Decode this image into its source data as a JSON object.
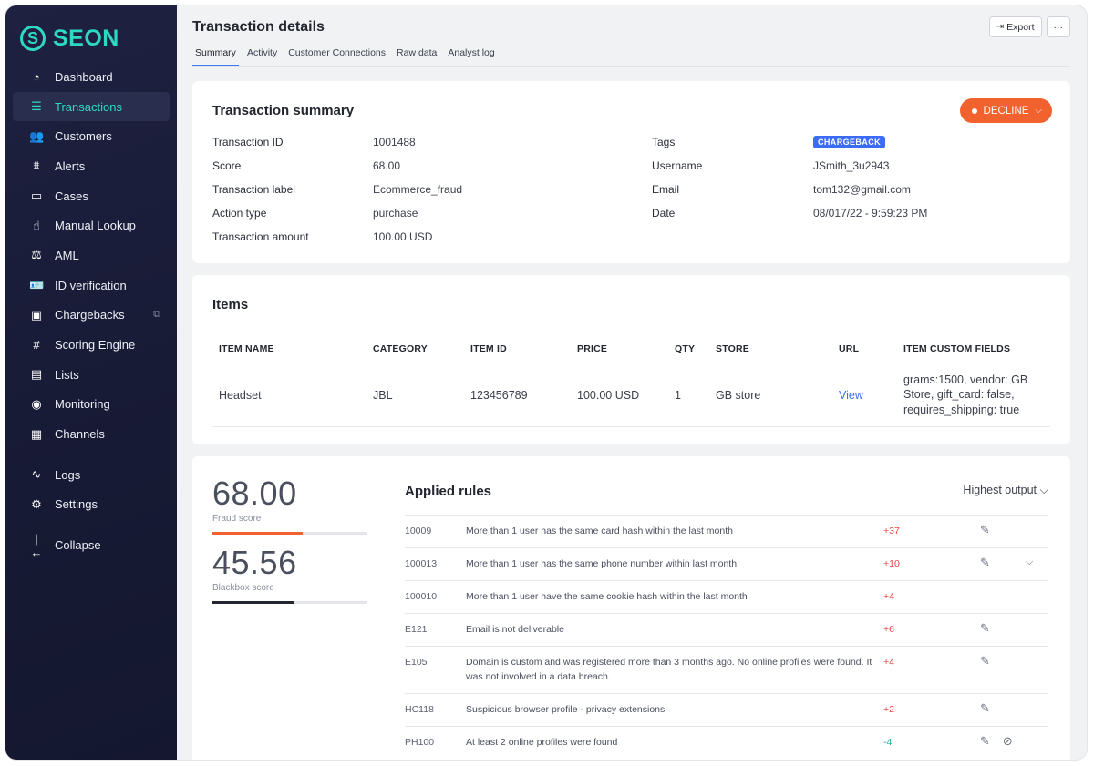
{
  "brand": {
    "name": "SEON",
    "color": "#2ed8c3"
  },
  "sidebar": {
    "items": [
      {
        "label": "Dashboard",
        "icon": "dashboard-icon",
        "glyph": "◔"
      },
      {
        "label": "Transactions",
        "icon": "transactions-icon",
        "glyph": "☰",
        "active": true
      },
      {
        "label": "Customers",
        "icon": "customers-icon",
        "glyph": "👥"
      },
      {
        "label": "Alerts",
        "icon": "alerts-icon",
        "glyph": "⩩"
      },
      {
        "label": "Cases",
        "icon": "cases-icon",
        "glyph": "▭"
      },
      {
        "label": "Manual Lookup",
        "icon": "manual-lookup-icon",
        "glyph": "☝"
      },
      {
        "label": "AML",
        "icon": "aml-icon",
        "glyph": "⚖"
      },
      {
        "label": "ID verification",
        "icon": "id-verification-icon",
        "glyph": "🪪"
      },
      {
        "label": "Chargebacks",
        "icon": "chargebacks-icon",
        "glyph": "▣",
        "external": true
      },
      {
        "label": "Scoring Engine",
        "icon": "scoring-engine-icon",
        "glyph": "#"
      },
      {
        "label": "Lists",
        "icon": "lists-icon",
        "glyph": "▤"
      },
      {
        "label": "Monitoring",
        "icon": "monitoring-icon",
        "glyph": "◉"
      },
      {
        "label": "Channels",
        "icon": "channels-icon",
        "glyph": "▦"
      }
    ],
    "secondary": [
      {
        "label": "Logs",
        "icon": "logs-icon",
        "glyph": "∿"
      },
      {
        "label": "Settings",
        "icon": "settings-icon",
        "glyph": "⚙"
      }
    ],
    "collapse": {
      "label": "Collapse",
      "icon": "collapse-icon",
      "glyph": "|←"
    }
  },
  "header": {
    "title": "Transaction details",
    "tabs": [
      "Summary",
      "Activity",
      "Customer Connections",
      "Raw data",
      "Analyst log"
    ],
    "active_tab": "Summary",
    "export_label": "Export",
    "more_label": "···"
  },
  "summary": {
    "title": "Transaction summary",
    "decision": "DECLINE",
    "decision_color": "#f2622e",
    "left": [
      {
        "label": "Transaction ID",
        "value": "1001488"
      },
      {
        "label": "Score",
        "value": "68.00"
      },
      {
        "label": "Transaction label",
        "value": "Ecommerce_fraud"
      },
      {
        "label": "Action type",
        "value": "purchase"
      },
      {
        "label": "Transaction amount",
        "value": "100.00 USD"
      }
    ],
    "right": [
      {
        "label": "Tags",
        "value": "CHARGEBACK"
      },
      {
        "label": "Username",
        "value": "JSmith_3u2943"
      },
      {
        "label": "Email",
        "value": "tom132@gmail.com"
      },
      {
        "label": "Date",
        "value": "08/017/22 - 9:59:23 PM"
      }
    ]
  },
  "items": {
    "title": "Items",
    "columns": [
      "ITEM NAME",
      "CATEGORY",
      "ITEM ID",
      "PRICE",
      "QTY",
      "STORE",
      "URL",
      "ITEM CUSTOM FIELDS"
    ],
    "rows": [
      [
        "Headset",
        "JBL",
        "123456789",
        "100.00 USD",
        "1",
        "GB store",
        "View",
        "grams:1500, vendor: GB Store, gift_card: false, requires_shipping: true"
      ]
    ]
  },
  "scores": {
    "fraud": {
      "value": "68.00",
      "label": "Fraud score",
      "fraction": 0.58,
      "color": "#f2622e"
    },
    "blackbox": {
      "value": "45.56",
      "label": "Blackbox score",
      "fraction": 0.53,
      "color": "#23262f"
    }
  },
  "rules": {
    "title": "Applied rules",
    "sort_label": "Highest output",
    "rows": [
      {
        "id": "10009",
        "desc": "More than 1 user has the same card hash within the last month",
        "value": "+37",
        "edit": true
      },
      {
        "id": "100013",
        "desc": "More than 1 user has the same phone number within last month",
        "value": "+10",
        "edit": true,
        "expand": true
      },
      {
        "id": "100010",
        "desc": "More than 1 user have the same cookie hash within the last month",
        "value": "+4",
        "edit": false
      },
      {
        "id": "E121",
        "desc": "Email is not deliverable",
        "value": "+6",
        "edit": true
      },
      {
        "id": "E105",
        "desc": "Domain is custom and was registered more than 3 months ago. No online profiles were found. It was not involved in a data breach.",
        "value": "+4",
        "edit": true
      },
      {
        "id": "HC118",
        "desc": "Suspicious browser profile - privacy extensions",
        "value": "+2",
        "edit": true
      },
      {
        "id": "PH100",
        "desc": "At least 2 online profiles were found",
        "value": "-4",
        "edit": true,
        "mute": true
      }
    ]
  }
}
